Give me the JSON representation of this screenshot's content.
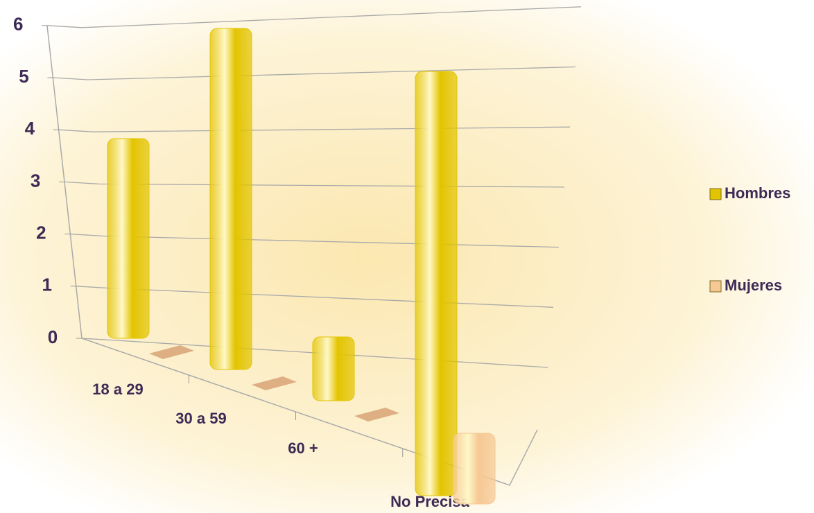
{
  "chart_data": {
    "type": "bar3d",
    "categories": [
      "18 a 29",
      "30 a 59",
      "60 +",
      "No Precisa"
    ],
    "series": [
      {
        "name": "Hombres",
        "color": "#e3c400",
        "values": [
          4,
          6,
          1,
          6
        ]
      },
      {
        "name": "Mujeres",
        "color": "#f6c894",
        "values": [
          0,
          0,
          0,
          1
        ]
      }
    ],
    "ylim": [
      0,
      6
    ],
    "yticks": [
      0,
      1,
      2,
      3,
      4,
      5,
      6
    ],
    "grid": true,
    "legend": "right"
  }
}
